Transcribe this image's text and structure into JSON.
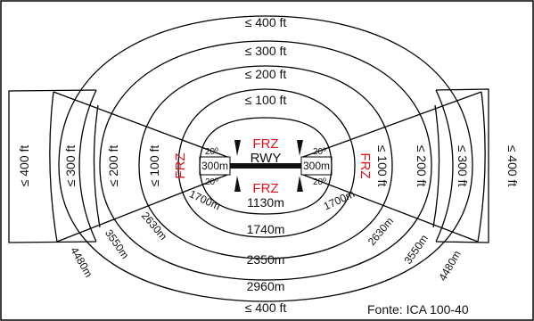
{
  "colors": {
    "frz": "#e0141e",
    "line": "#000000",
    "background": "#ffffff"
  },
  "top_heights": [
    "≤ 400 ft",
    "≤ 300 ft",
    "≤ 200 ft",
    "≤ 100 ft"
  ],
  "bottom_height": "≤ 400 ft",
  "left_sector_heights": [
    "≤ 400 ft",
    "≤ 300 ft",
    "≤ 200 ft",
    "≤ 100 ft"
  ],
  "right_sector_heights": [
    "≤ 100 ft",
    "≤ 200 ft",
    "≤ 300 ft",
    "≤ 400 ft"
  ],
  "frz_label": "FRZ",
  "runway_label": "RWY",
  "strip_width": "300m",
  "angle": "20º",
  "ring_widths": [
    "1130m",
    "1740m",
    "2350m",
    "2960m"
  ],
  "radial_distances": [
    "1700m",
    "2630m",
    "3550m",
    "4480m"
  ],
  "source": "Fonte: ICA 100-40"
}
